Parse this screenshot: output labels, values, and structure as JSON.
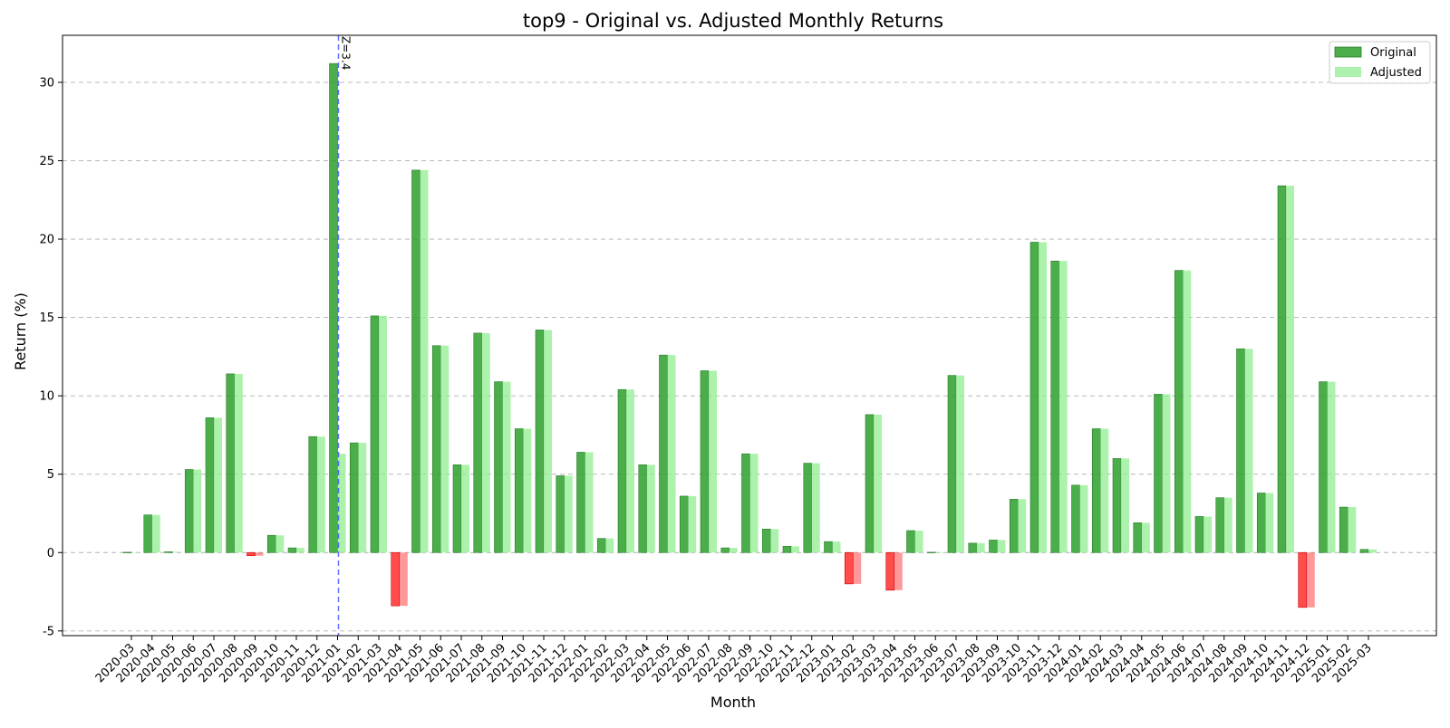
{
  "chart_data": {
    "type": "bar",
    "title": "top9 - Original vs. Adjusted Monthly Returns",
    "xlabel": "Month",
    "ylabel": "Return (%)",
    "ylim": [
      -5.3,
      33
    ],
    "yticks": [
      -5,
      0,
      5,
      10,
      15,
      20,
      25,
      30
    ],
    "grid": "horizontal dashed",
    "legend_position": "top-right",
    "categories": [
      "2020-03",
      "2020-04",
      "2020-05",
      "2020-06",
      "2020-07",
      "2020-08",
      "2020-09",
      "2020-10",
      "2020-11",
      "2020-12",
      "2021-01",
      "2021-02",
      "2021-03",
      "2021-04",
      "2021-05",
      "2021-06",
      "2021-07",
      "2021-08",
      "2021-09",
      "2021-10",
      "2021-11",
      "2021-12",
      "2022-01",
      "2022-02",
      "2022-03",
      "2022-04",
      "2022-05",
      "2022-06",
      "2022-07",
      "2022-08",
      "2022-09",
      "2022-10",
      "2022-11",
      "2022-12",
      "2023-01",
      "2023-02",
      "2023-03",
      "2023-04",
      "2023-05",
      "2023-06",
      "2023-07",
      "2023-08",
      "2023-09",
      "2023-10",
      "2023-11",
      "2023-12",
      "2024-01",
      "2024-02",
      "2024-03",
      "2024-04",
      "2024-05",
      "2024-06",
      "2024-07",
      "2024-08",
      "2024-09",
      "2024-10",
      "2024-11",
      "2024-12",
      "2025-01",
      "2025-02",
      "2025-03"
    ],
    "series": [
      {
        "name": "Original",
        "values": [
          0.02,
          2.4,
          0.05,
          5.3,
          8.6,
          11.4,
          -0.2,
          1.1,
          0.3,
          7.4,
          31.2,
          7.0,
          15.1,
          -3.4,
          24.4,
          13.2,
          5.6,
          14.0,
          10.9,
          7.9,
          14.2,
          4.9,
          6.4,
          0.9,
          10.4,
          5.6,
          12.6,
          3.6,
          11.6,
          0.3,
          6.3,
          1.5,
          0.4,
          5.7,
          0.7,
          -2.0,
          8.8,
          -2.4,
          1.4,
          0.02,
          11.3,
          0.6,
          0.8,
          3.4,
          19.8,
          18.6,
          4.3,
          7.9,
          6.0,
          1.9,
          10.1,
          18.0,
          2.3,
          3.5,
          13.0,
          3.8,
          23.4,
          -3.5,
          10.9,
          2.9,
          0.2
        ]
      },
      {
        "name": "Adjusted",
        "values": [
          0.02,
          2.4,
          0.05,
          5.3,
          8.6,
          11.4,
          -0.2,
          1.1,
          0.3,
          7.4,
          6.3,
          7.0,
          15.1,
          -3.4,
          24.4,
          13.2,
          5.6,
          14.0,
          10.9,
          7.9,
          14.2,
          4.9,
          6.4,
          0.9,
          10.4,
          5.6,
          12.6,
          3.6,
          11.6,
          0.3,
          6.3,
          1.5,
          0.4,
          5.7,
          0.7,
          -2.0,
          8.8,
          -2.4,
          1.4,
          0.02,
          11.3,
          0.6,
          0.8,
          3.4,
          19.8,
          18.6,
          4.3,
          7.9,
          6.0,
          1.9,
          10.1,
          18.0,
          2.3,
          3.5,
          13.0,
          3.8,
          23.4,
          -3.5,
          10.9,
          2.9,
          0.2
        ]
      }
    ],
    "colors": {
      "original_positive": "#2ca02c",
      "adjusted_positive": "#90ee90",
      "negative": "#ff0000",
      "outlier_line": "#3344ff",
      "grid": "#b0b0b0"
    },
    "annotations": [
      {
        "category": "2021-01",
        "text": "Z=3.4",
        "style": "vertical dashed line"
      }
    ]
  }
}
